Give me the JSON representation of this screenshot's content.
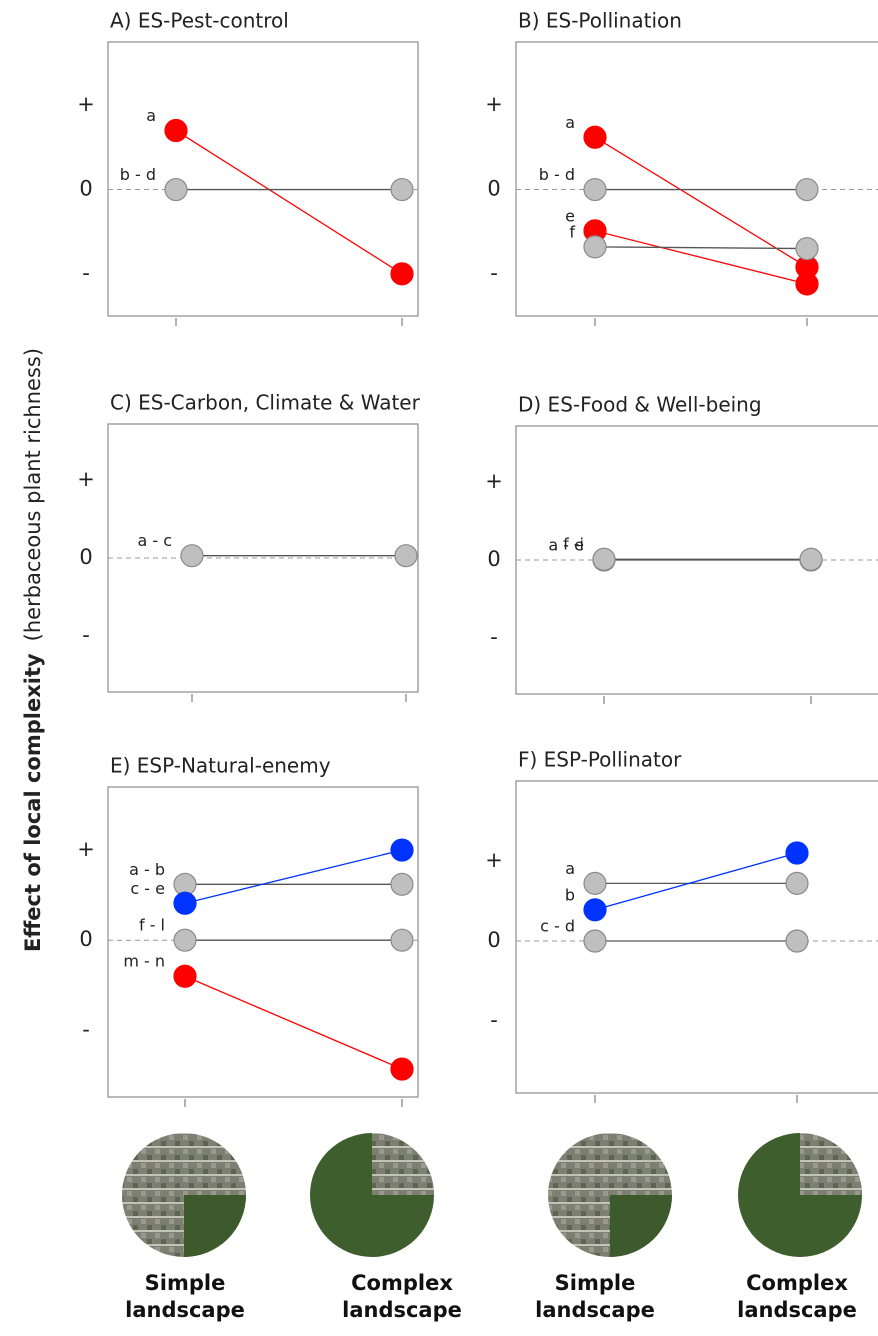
{
  "y_label_main": "Effect of local complexity",
  "y_label_note": "(herbaceous plant richness)",
  "chart_data": [
    {
      "type": "line",
      "title": "A) ES-Pest-control",
      "categories": [
        null,
        null
      ],
      "ylim": [
        -1.5,
        1.75
      ],
      "yticks": [
        {
          "value": 1,
          "label": "+"
        },
        0,
        {
          "value": -1,
          "label": "-"
        }
      ],
      "series": [
        {
          "name": "a",
          "color": "#ff0000",
          "values": [
            0.7,
            -1.0
          ]
        },
        {
          "name": "b - d",
          "color": "#bfbfbf",
          "values": [
            0,
            0
          ]
        }
      ]
    },
    {
      "type": "line",
      "title": "B) ES-Pollination",
      "categories": [
        null,
        null
      ],
      "ylim": [
        -1.5,
        1.75
      ],
      "yticks": [
        {
          "value": 1,
          "label": "+"
        },
        0,
        {
          "value": -1,
          "label": "-"
        }
      ],
      "series": [
        {
          "name": "a",
          "color": "#ff0000",
          "values": [
            0.62,
            -0.92
          ]
        },
        {
          "name": "b - d",
          "color": "#bfbfbf",
          "values": [
            0,
            0
          ]
        },
        {
          "name": "e",
          "color": "#ff0000",
          "values": [
            -0.49,
            -1.12
          ]
        },
        {
          "name": "f",
          "color": "#bfbfbf",
          "values": [
            -0.68,
            -0.7
          ]
        }
      ]
    },
    {
      "type": "line",
      "title": "C) ES-Carbon, Climate & Water",
      "categories": [
        null,
        null
      ],
      "ylim": [
        -1.72,
        1.72
      ],
      "yticks": [
        {
          "value": 1,
          "label": "+"
        },
        0,
        {
          "value": -1,
          "label": "-"
        }
      ],
      "series": [
        {
          "name": "a - c",
          "color": "#bfbfbf",
          "values": [
            0.03,
            0.03
          ]
        }
      ]
    },
    {
      "type": "line",
      "title": "D) ES-Food & Well-being",
      "categories": [
        null,
        null
      ],
      "ylim": [
        -1.72,
        1.72
      ],
      "yticks": [
        {
          "value": 1,
          "label": "+"
        },
        0,
        {
          "value": -1,
          "label": "-"
        }
      ],
      "series": [
        {
          "name": "a - e",
          "color": "#bfbfbf",
          "values": [
            0,
            0
          ]
        },
        {
          "name": "f -i",
          "color": "#bfbfbf",
          "values": [
            0.01,
            0.01
          ]
        }
      ]
    },
    {
      "type": "line",
      "title": "E) ESP-Natural-enemy",
      "categories": [
        "Simple landscape",
        "Complex landscape"
      ],
      "ylim": [
        -1.74,
        1.7
      ],
      "yticks": [
        {
          "value": 1,
          "label": "+"
        },
        0,
        {
          "value": -1,
          "label": "-"
        }
      ],
      "series": [
        {
          "name": "a - b",
          "color": "#bfbfbf",
          "values": [
            0.62,
            0.62
          ]
        },
        {
          "name": "c - e",
          "color": "#0033ff",
          "values": [
            0.41,
            1.0
          ]
        },
        {
          "name": "f - l",
          "color": "#bfbfbf",
          "values": [
            0,
            0
          ]
        },
        {
          "name": "m - n",
          "color": "#ff0000",
          "values": [
            -0.4,
            -1.43
          ]
        }
      ]
    },
    {
      "type": "line",
      "title": "F) ESP-Pollinator",
      "categories": [
        "Simple landscape",
        "Complex landscape"
      ],
      "ylim": [
        -1.9,
        2.0
      ],
      "yticks": [
        {
          "value": 1,
          "label": "+"
        },
        0,
        {
          "value": -1,
          "label": "-"
        }
      ],
      "series": [
        {
          "name": "a",
          "color": "#bfbfbf",
          "values": [
            0.72,
            0.72
          ]
        },
        {
          "name": "b",
          "color": "#0033ff",
          "values": [
            0.39,
            1.1
          ]
        },
        {
          "name": "c - d",
          "color": "#bfbfbf",
          "values": [
            0,
            0
          ]
        }
      ]
    }
  ]
}
